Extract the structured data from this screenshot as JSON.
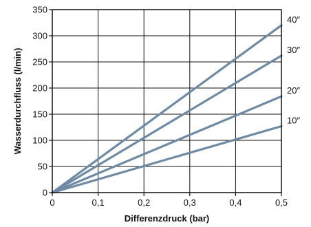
{
  "chart_data": {
    "type": "line",
    "xlabel": "Differenzdruck (bar)",
    "ylabel": "Wasserdurchfluss (l/min)",
    "xlim": [
      0,
      0.5
    ],
    "ylim": [
      0,
      350
    ],
    "x_ticks": [
      0,
      0.1,
      0.2,
      0.3,
      0.4,
      0.5
    ],
    "x_tick_labels": [
      "0",
      "0,1",
      "0,2",
      "0,3",
      "0,4",
      "0,5"
    ],
    "y_ticks": [
      0,
      50,
      100,
      150,
      200,
      250,
      300,
      350
    ],
    "y_tick_labels": [
      "0",
      "50",
      "100",
      "150",
      "200",
      "250",
      "300",
      "350"
    ],
    "grid": true,
    "line_color": "#6f8aa3",
    "series": [
      {
        "name": "40″",
        "x": [
          0,
          0.5
        ],
        "y": [
          0,
          320
        ]
      },
      {
        "name": "30″",
        "x": [
          0,
          0.5
        ],
        "y": [
          0,
          262
        ]
      },
      {
        "name": "20″",
        "x": [
          0,
          0.5
        ],
        "y": [
          0,
          184
        ]
      },
      {
        "name": "10″",
        "x": [
          0,
          0.5
        ],
        "y": [
          0,
          127
        ]
      }
    ]
  }
}
